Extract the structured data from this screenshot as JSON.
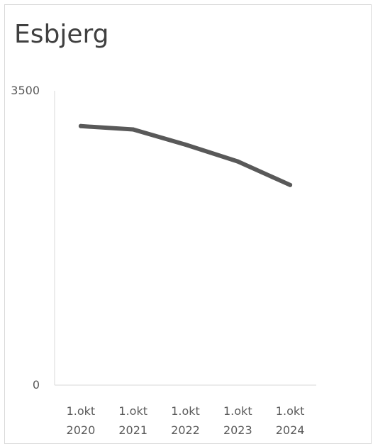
{
  "chart_data": {
    "type": "line",
    "title": "Esbjerg",
    "categories": [
      "1.okt 2020",
      "1.okt 2021",
      "1.okt 2022",
      "1.okt 2023",
      "1.okt 2024"
    ],
    "category_lines": [
      [
        "1.okt",
        "2020"
      ],
      [
        "1.okt",
        "2021"
      ],
      [
        "1.okt",
        "2022"
      ],
      [
        "1.okt",
        "2023"
      ],
      [
        "1.okt",
        "2024"
      ]
    ],
    "series": [
      {
        "values": [
          3080,
          3040,
          2860,
          2660,
          2380
        ]
      }
    ],
    "ylim": [
      0,
      3500
    ],
    "yticks": [
      "3500",
      "0"
    ],
    "grid": false,
    "legend": "none",
    "line_color": "#595959"
  }
}
